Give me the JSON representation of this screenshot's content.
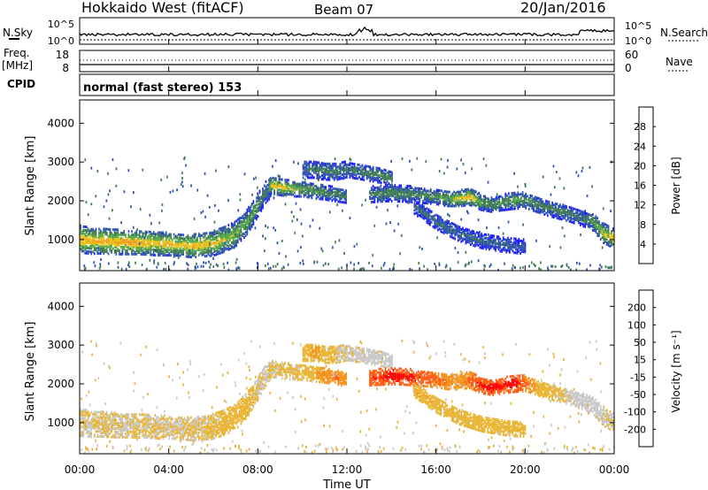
{
  "header": {
    "title": "Hokkaido West (fitACF)",
    "beam": "Beam 07",
    "date": "20/Jan/2016"
  },
  "panels_labels": {
    "nsky_label": "N.Sky",
    "nsearch_label": "N.Search",
    "freq_label_1": "Freq.",
    "freq_label_2": "[MHz]",
    "nave_label": "Nave",
    "cpid_label": "CPID",
    "cpid_value": "normal (fast stereo) 153",
    "noise_ticks_left": [
      "10^5",
      "10^0"
    ],
    "noise_ticks_right": [
      "10^5",
      "10^0"
    ],
    "freq_ticks_left": [
      "18",
      "8"
    ],
    "nave_ticks_right": [
      "60",
      "0"
    ]
  },
  "colors": {
    "power": [
      "#1a1aff",
      "#2b4fb3",
      "#3f7a54",
      "#52a84a",
      "#e6c21a",
      "#f59a1a",
      "#ff5a10",
      "#ff0000"
    ],
    "velocity": [
      "#ff0000",
      "#ff5a10",
      "#f5901a",
      "#e8b432",
      "#c8c8c8",
      "#8cd050",
      "#3a8c3a",
      "#1a1aff"
    ]
  },
  "chart_data": [
    {
      "type": "heatmap",
      "title": "",
      "ylabel": "Slant Range [km]",
      "xlabel": "",
      "ylim": [
        200,
        4600
      ],
      "yticks": [
        1000,
        2000,
        3000,
        4000
      ],
      "x_ticks": [
        "00:00",
        "04:00",
        "08:00",
        "12:00",
        "16:00",
        "20:00",
        "00:00"
      ],
      "colorbar": {
        "label": "Power [dB]",
        "ticks": [
          "4",
          "8",
          "12",
          "16",
          "20",
          "24",
          "28"
        ],
        "range": [
          0,
          32
        ]
      },
      "bands": [
        {
          "x": [
            0,
            0.5,
            1,
            1.5,
            2,
            2.5,
            3,
            3.5,
            4,
            4.5,
            5,
            5.5,
            6,
            6.5,
            7,
            7.5,
            8,
            8.3,
            8.6
          ],
          "center": [
            1050,
            1000,
            1000,
            980,
            970,
            960,
            950,
            930,
            920,
            900,
            880,
            900,
            950,
            1050,
            1200,
            1500,
            1950,
            2250,
            2400
          ],
          "width": [
            350,
            330,
            320,
            320,
            310,
            300,
            300,
            300,
            290,
            280,
            300,
            300,
            320,
            320,
            320,
            320,
            300,
            280,
            250
          ],
          "peak": [
            22,
            21,
            22,
            21,
            22,
            22,
            21,
            20,
            21,
            20,
            21,
            20,
            19,
            18,
            16,
            14,
            12,
            10,
            9
          ]
        },
        {
          "x": [
            8.5,
            9,
            9.5,
            10,
            10.5,
            11,
            11.5,
            12
          ],
          "center": [
            2450,
            2400,
            2350,
            2350,
            2300,
            2250,
            2200,
            2150
          ],
          "width": [
            220,
            220,
            200,
            200,
            200,
            180,
            180,
            170
          ],
          "peak": [
            18,
            20,
            17,
            15,
            13,
            12,
            11,
            10
          ]
        },
        {
          "x": [
            10,
            10.5,
            11,
            11.5,
            12,
            12.5,
            13,
            13.5,
            14
          ],
          "center": [
            2850,
            2850,
            2800,
            2800,
            2850,
            2800,
            2750,
            2700,
            2600
          ],
          "width": [
            220,
            220,
            220,
            220,
            200,
            200,
            200,
            200,
            200
          ],
          "peak": [
            10,
            10,
            10,
            11,
            10,
            10,
            11,
            12,
            11
          ]
        },
        {
          "x": [
            13,
            14,
            15,
            16,
            16.5,
            17,
            17.5,
            18,
            18.5,
            19,
            19.5,
            20,
            20.5,
            21,
            22,
            22.5,
            23,
            23.5,
            24
          ],
          "center": [
            2200,
            2250,
            2200,
            2150,
            2100,
            2100,
            2150,
            2000,
            1950,
            2000,
            2050,
            2050,
            1950,
            1850,
            1700,
            1600,
            1500,
            1200,
            1050
          ],
          "width": [
            200,
            220,
            200,
            200,
            200,
            200,
            220,
            200,
            200,
            200,
            220,
            200,
            200,
            200,
            200,
            200,
            220,
            250,
            250
          ],
          "peak": [
            11,
            12,
            11,
            12,
            15,
            18,
            21,
            14,
            12,
            12,
            14,
            12,
            11,
            11,
            10,
            10,
            12,
            18,
            20
          ]
        },
        {
          "x": [
            15,
            16,
            17,
            18,
            19,
            20
          ],
          "center": [
            1900,
            1500,
            1200,
            1000,
            900,
            850
          ],
          "width": [
            200,
            200,
            200,
            180,
            180,
            180
          ],
          "peak": [
            8,
            9,
            9,
            8,
            8,
            7
          ]
        }
      ]
    },
    {
      "type": "heatmap",
      "title": "",
      "ylabel": "Slant Range [km]",
      "xlabel": "Time UT",
      "ylim": [
        200,
        4600
      ],
      "yticks": [
        1000,
        2000,
        3000,
        4000
      ],
      "x_ticks": [
        "00:00",
        "04:00",
        "08:00",
        "12:00",
        "16:00",
        "20:00",
        "00:00"
      ],
      "colorbar": {
        "label": "Velocity [m s⁻¹]",
        "ticks": [
          "-200",
          "-100",
          "-50",
          "-15",
          "15",
          "50",
          "100",
          "200"
        ],
        "range": [
          -250,
          250
        ]
      },
      "bands": [
        {
          "x": [
            0,
            0.5,
            1,
            1.5,
            2,
            2.5,
            3,
            3.5,
            4,
            4.5,
            5,
            5.5,
            6,
            6.5,
            7,
            7.5,
            8,
            8.3,
            8.6
          ],
          "center": [
            1050,
            1000,
            1000,
            980,
            970,
            960,
            950,
            930,
            920,
            900,
            880,
            900,
            950,
            1050,
            1200,
            1500,
            1950,
            2250,
            2400
          ],
          "width": [
            350,
            330,
            320,
            320,
            310,
            300,
            300,
            300,
            290,
            280,
            300,
            300,
            320,
            320,
            320,
            320,
            300,
            280,
            250
          ],
          "peak": [
            0,
            5,
            -5,
            0,
            5,
            0,
            -5,
            0,
            5,
            0,
            -5,
            0,
            -10,
            -20,
            -30,
            -20,
            0,
            10,
            0
          ]
        },
        {
          "x": [
            8.5,
            9,
            9.5,
            10,
            10.5,
            11,
            11.5,
            12
          ],
          "center": [
            2450,
            2400,
            2350,
            2350,
            2300,
            2250,
            2200,
            2150
          ],
          "width": [
            220,
            220,
            200,
            200,
            200,
            180,
            180,
            170
          ],
          "peak": [
            0,
            -5,
            -10,
            -20,
            -60,
            -110,
            -130,
            -90
          ]
        },
        {
          "x": [
            10,
            10.5,
            11,
            11.5,
            12,
            12.5,
            13,
            13.5,
            14
          ],
          "center": [
            2850,
            2850,
            2800,
            2800,
            2850,
            2800,
            2750,
            2700,
            2600
          ],
          "width": [
            220,
            220,
            220,
            220,
            200,
            200,
            200,
            200,
            200
          ],
          "peak": [
            -30,
            -80,
            -40,
            0,
            5,
            10,
            20,
            10,
            30
          ]
        },
        {
          "x": [
            13,
            14,
            15,
            16,
            16.5,
            17,
            17.5,
            18,
            18.5,
            19,
            19.5,
            20,
            20.5,
            21,
            22,
            22.5,
            23,
            23.5,
            24
          ],
          "center": [
            2200,
            2250,
            2200,
            2150,
            2100,
            2100,
            2150,
            2000,
            1950,
            2000,
            2050,
            2050,
            1950,
            1850,
            1700,
            1600,
            1500,
            1200,
            1050
          ],
          "width": [
            200,
            220,
            200,
            200,
            200,
            200,
            220,
            200,
            200,
            200,
            220,
            200,
            200,
            200,
            200,
            200,
            220,
            250,
            250
          ],
          "peak": [
            -180,
            -220,
            -200,
            -150,
            -120,
            -80,
            -160,
            -200,
            -220,
            -200,
            -230,
            -150,
            -60,
            -20,
            10,
            20,
            30,
            10,
            0
          ]
        },
        {
          "x": [
            15,
            16,
            17,
            18,
            19,
            20
          ],
          "center": [
            1900,
            1500,
            1200,
            1000,
            900,
            850
          ],
          "width": [
            200,
            200,
            200,
            180,
            180,
            180
          ],
          "peak": [
            -60,
            -50,
            -40,
            -40,
            -30,
            -30
          ]
        }
      ]
    }
  ],
  "xaxis": {
    "label": "Time UT"
  }
}
